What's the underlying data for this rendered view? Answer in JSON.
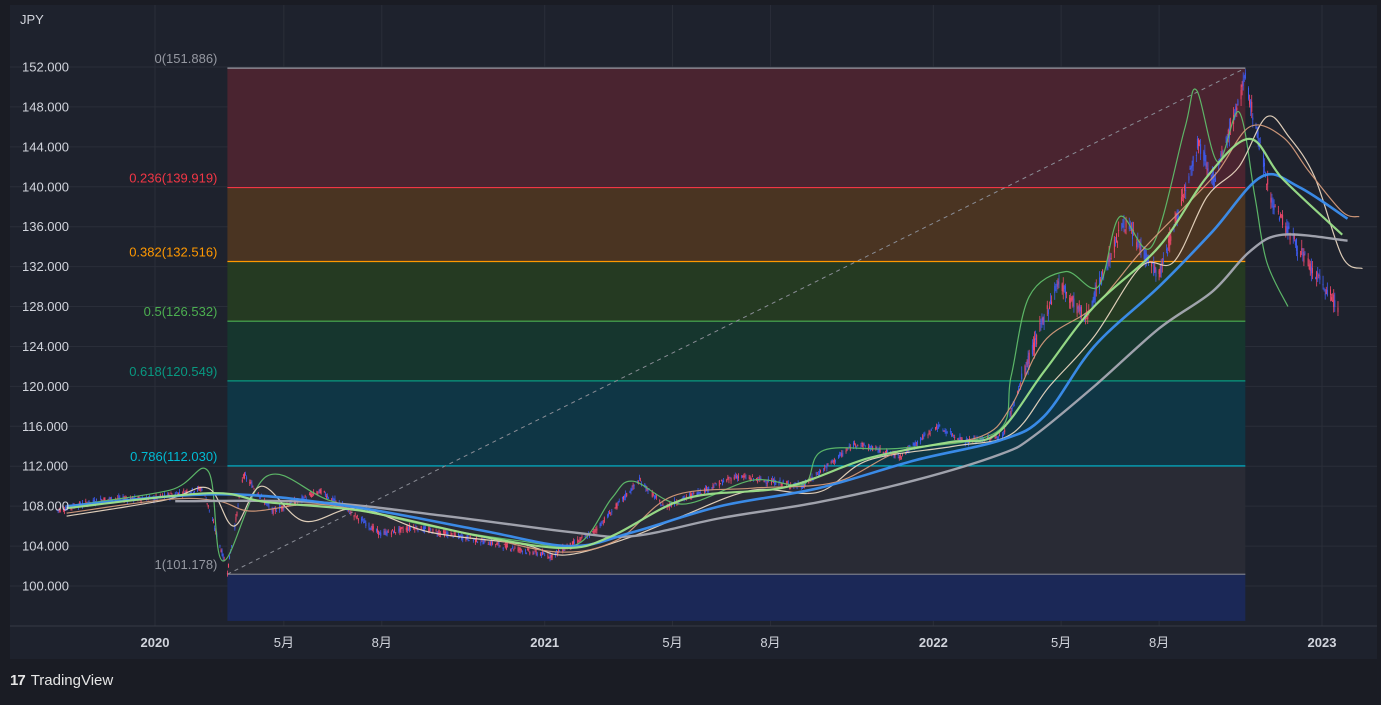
{
  "colors": {
    "background": "#1e222d",
    "grid": "#2a2e39",
    "text": "#d1d4dc",
    "candle_up": "#3d5bf0",
    "candle_down": "#f0486b",
    "ma_fast": "#9be08a",
    "ma_mid": "#3b8ff0",
    "ma_slow": "#a7a9b3",
    "ichimoku_lead": "#5fbd6a",
    "ichimoku_base": "#d39a7a",
    "ichimoku_conv": "#e8d6c0"
  },
  "brand": {
    "logo": "17",
    "name": "TradingView"
  },
  "chart_data": {
    "type": "line",
    "instrument_unit": "JPY",
    "ylim": [
      96.5,
      153.8
    ],
    "y_ticks": [
      "100.000",
      "104.000",
      "108.000",
      "112.000",
      "116.000",
      "120.000",
      "124.000",
      "128.000",
      "132.000",
      "136.000",
      "140.000",
      "144.000",
      "148.000",
      "152.000"
    ],
    "y_tick_values": [
      100,
      104,
      108,
      112,
      116,
      120,
      124,
      128,
      132,
      136,
      140,
      144,
      148,
      152
    ],
    "x_range": [
      "2019-10-01",
      "2023-02-10"
    ],
    "x_ticks": [
      {
        "label": "2020",
        "date": "2020-01-01",
        "bold": true
      },
      {
        "label": "5月",
        "date": "2020-05-01",
        "bold": false
      },
      {
        "label": "8月",
        "date": "2020-08-01",
        "bold": false
      },
      {
        "label": "2021",
        "date": "2021-01-01",
        "bold": true
      },
      {
        "label": "5月",
        "date": "2021-05-01",
        "bold": false
      },
      {
        "label": "8月",
        "date": "2021-08-01",
        "bold": false
      },
      {
        "label": "2022",
        "date": "2022-01-01",
        "bold": true
      },
      {
        "label": "5月",
        "date": "2022-05-01",
        "bold": false
      },
      {
        "label": "8月",
        "date": "2022-08-01",
        "bold": false
      },
      {
        "label": "2023",
        "date": "2023-01-01",
        "bold": true
      }
    ],
    "fibonacci": {
      "start_date": "2020-03-09",
      "end_date": "2022-10-21",
      "low": 101.178,
      "high": 151.886,
      "levels": [
        {
          "label": "0(151.886)",
          "ratio": 0,
          "price": 151.886,
          "line": "#9598a1",
          "label_color": "#9598a1",
          "fill": "#4a2430"
        },
        {
          "label": "0.236(139.919)",
          "ratio": 0.236,
          "price": 139.919,
          "line": "#f23645",
          "label_color": "#f23645",
          "fill": "#4a3422"
        },
        {
          "label": "0.382(132.516)",
          "ratio": 0.382,
          "price": 132.516,
          "line": "#ff9800",
          "label_color": "#ff9800",
          "fill": "#253a22"
        },
        {
          "label": "0.5(126.532)",
          "ratio": 0.5,
          "price": 126.532,
          "line": "#4caf50",
          "label_color": "#4caf50",
          "fill": "#16362e"
        },
        {
          "label": "0.618(120.549)",
          "ratio": 0.618,
          "price": 120.549,
          "line": "#089981",
          "label_color": "#089981",
          "fill": "#0f3645"
        },
        {
          "label": "0.786(112.030)",
          "ratio": 0.786,
          "price": 112.03,
          "line": "#00bcd4",
          "label_color": "#00bcd4",
          "fill": "#292b35"
        },
        {
          "label": "1(101.178)",
          "ratio": 1,
          "price": 101.178,
          "line": "#787b86",
          "label_color": "#9598a1",
          "fill": "#1b2857"
        }
      ],
      "below_fill_to": 96.5
    },
    "price_anchors": [
      [
        "2019-10-01",
        107.6
      ],
      [
        "2019-11-15",
        108.7
      ],
      [
        "2020-01-01",
        108.8
      ],
      [
        "2020-02-15",
        109.8
      ],
      [
        "2020-03-09",
        101.5
      ],
      [
        "2020-03-24",
        111.2
      ],
      [
        "2020-04-20",
        107.5
      ],
      [
        "2020-06-05",
        109.5
      ],
      [
        "2020-07-31",
        105.2
      ],
      [
        "2020-08-31",
        105.9
      ],
      [
        "2020-10-30",
        104.6
      ],
      [
        "2021-01-06",
        103.0
      ],
      [
        "2021-02-15",
        105.3
      ],
      [
        "2021-03-31",
        110.6
      ],
      [
        "2021-04-23",
        107.9
      ],
      [
        "2021-06-30",
        111.0
      ],
      [
        "2021-08-31",
        110.0
      ],
      [
        "2021-10-20",
        114.3
      ],
      [
        "2021-12-01",
        113.0
      ],
      [
        "2022-01-04",
        116.0
      ],
      [
        "2022-01-31",
        114.5
      ],
      [
        "2022-03-07",
        115.0
      ],
      [
        "2022-03-31",
        122.5
      ],
      [
        "2022-04-28",
        130.5
      ],
      [
        "2022-05-24",
        126.8
      ],
      [
        "2022-06-29",
        136.5
      ],
      [
        "2022-08-01",
        131.0
      ],
      [
        "2022-09-07",
        144.5
      ],
      [
        "2022-09-22",
        140.5
      ],
      [
        "2022-10-21",
        150.8
      ],
      [
        "2022-11-15",
        138.5
      ],
      [
        "2022-12-20",
        132.0
      ],
      [
        "2023-01-16",
        128.0
      ]
    ],
    "series": [
      {
        "key": "ma_fast",
        "width": 2.2,
        "points": [
          [
            "2019-10-10",
            107.8
          ],
          [
            "2020-02-20",
            109.3
          ],
          [
            "2020-04-15",
            108.4
          ],
          [
            "2020-07-15",
            107.5
          ],
          [
            "2020-11-01",
            105.0
          ],
          [
            "2021-01-20",
            103.8
          ],
          [
            "2021-03-05",
            105.0
          ],
          [
            "2021-05-15",
            108.8
          ],
          [
            "2021-08-15",
            109.9
          ],
          [
            "2021-11-01",
            112.8
          ],
          [
            "2022-01-15",
            114.4
          ],
          [
            "2022-03-01",
            115.2
          ],
          [
            "2022-04-15",
            121.5
          ],
          [
            "2022-06-01",
            128.0
          ],
          [
            "2022-08-01",
            134.0
          ],
          [
            "2022-09-15",
            141.0
          ],
          [
            "2022-10-25",
            144.8
          ],
          [
            "2022-11-25",
            140.8
          ],
          [
            "2023-01-20",
            135.2
          ]
        ]
      },
      {
        "key": "ma_mid",
        "width": 2.6,
        "points": [
          [
            "2019-10-10",
            108.0
          ],
          [
            "2020-03-01",
            109.2
          ],
          [
            "2020-07-01",
            108.0
          ],
          [
            "2020-11-01",
            105.6
          ],
          [
            "2021-01-25",
            104.0
          ],
          [
            "2021-03-25",
            105.4
          ],
          [
            "2021-06-15",
            108.0
          ],
          [
            "2021-09-15",
            109.8
          ],
          [
            "2021-12-15",
            112.6
          ],
          [
            "2022-03-05",
            114.6
          ],
          [
            "2022-04-15",
            117.0
          ],
          [
            "2022-06-01",
            124.0
          ],
          [
            "2022-08-01",
            130.0
          ],
          [
            "2022-09-20",
            135.5
          ],
          [
            "2022-11-05",
            141.0
          ],
          [
            "2022-12-10",
            140.0
          ],
          [
            "2023-01-25",
            136.8
          ]
        ]
      },
      {
        "key": "ma_slow",
        "width": 2.4,
        "points": [
          [
            "2020-01-20",
            108.5
          ],
          [
            "2020-06-01",
            108.4
          ],
          [
            "2020-10-01",
            107.0
          ],
          [
            "2021-01-25",
            105.4
          ],
          [
            "2021-03-25",
            105.0
          ],
          [
            "2021-06-15",
            106.8
          ],
          [
            "2021-09-15",
            108.4
          ],
          [
            "2021-12-15",
            110.6
          ],
          [
            "2022-03-05",
            113.2
          ],
          [
            "2022-04-05",
            115.0
          ],
          [
            "2022-06-01",
            120.0
          ],
          [
            "2022-08-01",
            125.8
          ],
          [
            "2022-09-20",
            129.5
          ],
          [
            "2022-10-25",
            133.5
          ],
          [
            "2022-11-25",
            135.2
          ],
          [
            "2023-01-25",
            134.6
          ]
        ]
      },
      {
        "key": "ichimoku_lead",
        "width": 1.2,
        "points": [
          [
            "2019-10-10",
            108.0
          ],
          [
            "2020-01-15",
            109.6
          ],
          [
            "2020-02-20",
            111.5
          ],
          [
            "2020-03-05",
            102.5
          ],
          [
            "2020-04-15",
            111.0
          ],
          [
            "2020-06-15",
            108.5
          ],
          [
            "2020-09-15",
            106.0
          ],
          [
            "2020-12-10",
            104.5
          ],
          [
            "2021-02-01",
            104.2
          ],
          [
            "2021-03-05",
            108.8
          ],
          [
            "2021-03-25",
            110.5
          ],
          [
            "2021-05-10",
            108.2
          ],
          [
            "2021-07-15",
            110.6
          ],
          [
            "2021-09-01",
            110.2
          ],
          [
            "2021-09-20",
            113.6
          ],
          [
            "2021-12-01",
            113.8
          ],
          [
            "2022-03-01",
            115.4
          ],
          [
            "2022-03-15",
            121.0
          ],
          [
            "2022-04-01",
            129.0
          ],
          [
            "2022-05-05",
            131.5
          ],
          [
            "2022-06-05",
            130.0
          ],
          [
            "2022-06-25",
            137.0
          ],
          [
            "2022-07-25",
            134.0
          ],
          [
            "2022-08-25",
            145.8
          ],
          [
            "2022-09-05",
            149.7
          ],
          [
            "2022-09-25",
            142.5
          ],
          [
            "2022-10-15",
            147.5
          ],
          [
            "2022-10-30",
            139.0
          ],
          [
            "2022-11-10",
            132.5
          ],
          [
            "2022-11-30",
            128.0
          ]
        ]
      },
      {
        "key": "ichimoku_base",
        "width": 1.2,
        "points": [
          [
            "2019-10-10",
            107.3
          ],
          [
            "2020-01-15",
            108.7
          ],
          [
            "2020-03-01",
            108.5
          ],
          [
            "2020-04-01",
            107.5
          ],
          [
            "2020-06-01",
            108.2
          ],
          [
            "2020-08-15",
            106.8
          ],
          [
            "2020-11-01",
            105.0
          ],
          [
            "2021-01-15",
            103.4
          ],
          [
            "2021-03-10",
            104.6
          ],
          [
            "2021-05-01",
            109.0
          ],
          [
            "2021-07-15",
            109.8
          ],
          [
            "2021-10-01",
            110.4
          ],
          [
            "2021-12-01",
            113.5
          ],
          [
            "2022-02-15",
            115.0
          ],
          [
            "2022-03-15",
            118.0
          ],
          [
            "2022-04-15",
            124.5
          ],
          [
            "2022-06-01",
            128.0
          ],
          [
            "2022-07-15",
            133.5
          ],
          [
            "2022-08-25",
            138.0
          ],
          [
            "2022-09-25",
            141.5
          ],
          [
            "2022-10-25",
            146.0
          ],
          [
            "2022-11-25",
            145.0
          ],
          [
            "2022-12-20",
            141.5
          ],
          [
            "2023-01-20",
            137.5
          ],
          [
            "2023-02-05",
            137.0
          ]
        ]
      },
      {
        "key": "ichimoku_conv",
        "width": 1.2,
        "points": [
          [
            "2019-10-10",
            107.0
          ],
          [
            "2020-01-10",
            108.6
          ],
          [
            "2020-02-20",
            109.8
          ],
          [
            "2020-03-15",
            106.0
          ],
          [
            "2020-04-10",
            110.0
          ],
          [
            "2020-05-20",
            106.5
          ],
          [
            "2020-07-10",
            107.8
          ],
          [
            "2020-09-15",
            105.4
          ],
          [
            "2020-12-10",
            104.2
          ],
          [
            "2021-01-20",
            103.1
          ],
          [
            "2021-03-20",
            104.8
          ],
          [
            "2021-05-10",
            107.0
          ],
          [
            "2021-07-15",
            109.6
          ],
          [
            "2021-09-15",
            109.4
          ],
          [
            "2021-11-01",
            112.6
          ],
          [
            "2022-01-20",
            114.0
          ],
          [
            "2022-03-15",
            115.2
          ],
          [
            "2022-04-20",
            120.0
          ],
          [
            "2022-06-01",
            125.0
          ],
          [
            "2022-07-15",
            132.0
          ],
          [
            "2022-08-15",
            132.5
          ],
          [
            "2022-09-15",
            139.0
          ],
          [
            "2022-10-15",
            142.0
          ],
          [
            "2022-11-10",
            147.0
          ],
          [
            "2022-12-01",
            145.0
          ],
          [
            "2022-12-25",
            141.0
          ],
          [
            "2023-01-20",
            133.0
          ],
          [
            "2023-02-08",
            131.8
          ]
        ]
      }
    ]
  }
}
